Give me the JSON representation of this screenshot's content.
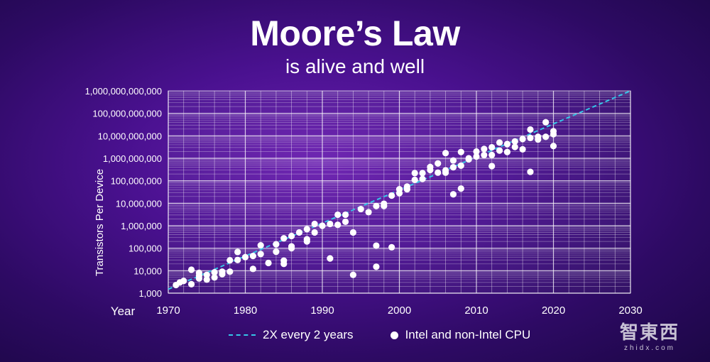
{
  "title": "Moore’s Law",
  "subtitle": "is alive and well",
  "legend": {
    "trend_label": "2X every 2 years",
    "points_label": "Intel and non-Intel CPU"
  },
  "watermark": {
    "main": "智東西",
    "sub": "zhidx.com"
  },
  "colors": {
    "trend_line": "#35c6e8",
    "points": "#ffffff",
    "grid": "#ffffff"
  },
  "chart_data": {
    "type": "scatter",
    "ylabel": "Transistors Per Device",
    "xlabel": "Year",
    "xlim": [
      1970,
      2030
    ],
    "ylim": [
      1000,
      1000000000000
    ],
    "y_scale": "log",
    "x_ticks": [
      1970,
      1980,
      1990,
      2000,
      2010,
      2020,
      2030
    ],
    "x_tick_labels": [
      "1970",
      "1980",
      "1990",
      "2000",
      "2010",
      "2020",
      "2030"
    ],
    "y_ticks": [
      1000,
      10000,
      100000,
      1000000,
      10000000,
      100000000,
      1000000000,
      10000000000,
      100000000000,
      1000000000000
    ],
    "y_tick_labels": [
      "1,000",
      "10,000",
      "100,000",
      "1,000,000",
      "10,000,000",
      "100,000,000",
      "1,000,000,000",
      "10,000,000,000",
      "100,000,000,000",
      "1,000,000,000,000"
    ],
    "grid": true,
    "trend": {
      "name": "2X every 2 years",
      "points": [
        [
          1970,
          1500
        ],
        [
          2030,
          1000000000000
        ]
      ]
    },
    "series": [
      {
        "name": "Intel and non-Intel CPU",
        "points": [
          [
            1971,
            2300
          ],
          [
            1971.5,
            3000
          ],
          [
            1972,
            3500
          ],
          [
            1973,
            2500
          ],
          [
            1973,
            11000
          ],
          [
            1974,
            4500
          ],
          [
            1974,
            6000
          ],
          [
            1974,
            8000
          ],
          [
            1975,
            4000
          ],
          [
            1975,
            6500
          ],
          [
            1976,
            5000
          ],
          [
            1976,
            8500
          ],
          [
            1977,
            7000
          ],
          [
            1977,
            9000
          ],
          [
            1978,
            9000
          ],
          [
            1978,
            29000
          ],
          [
            1979,
            30000
          ],
          [
            1979,
            68000
          ],
          [
            1980,
            40000
          ],
          [
            1981,
            12000
          ],
          [
            1981,
            45000
          ],
          [
            1982,
            55000
          ],
          [
            1982,
            134000
          ],
          [
            1983,
            22000
          ],
          [
            1984,
            70000
          ],
          [
            1984,
            150000
          ],
          [
            1985,
            20000
          ],
          [
            1985,
            28000
          ],
          [
            1985,
            275000
          ],
          [
            1986,
            100000
          ],
          [
            1986,
            120000
          ],
          [
            1986,
            350000
          ],
          [
            1987,
            500000
          ],
          [
            1988,
            200000
          ],
          [
            1988,
            250000
          ],
          [
            1988,
            700000
          ],
          [
            1989,
            500000
          ],
          [
            1989,
            1200000
          ],
          [
            1990,
            1000000
          ],
          [
            1991,
            1200000
          ],
          [
            1991,
            35000
          ],
          [
            1992,
            1100000
          ],
          [
            1992,
            3100000
          ],
          [
            1993,
            1500000
          ],
          [
            1993,
            3100000
          ],
          [
            1994,
            500000
          ],
          [
            1994,
            6500
          ],
          [
            1995,
            5500000
          ],
          [
            1996,
            4000000
          ],
          [
            1997,
            7500000
          ],
          [
            1997,
            130000
          ],
          [
            1997,
            15000
          ],
          [
            1998,
            7500000
          ],
          [
            1998,
            9500000
          ],
          [
            1999,
            110000
          ],
          [
            1999,
            22000000
          ],
          [
            2000,
            42000000
          ],
          [
            2000,
            28000000
          ],
          [
            2001,
            55000000
          ],
          [
            2001,
            42000000
          ],
          [
            2002,
            110000000
          ],
          [
            2002,
            220000000
          ],
          [
            2003,
            220000000
          ],
          [
            2003,
            120000000
          ],
          [
            2004,
            300000000
          ],
          [
            2004,
            410000000
          ],
          [
            2005,
            230000000
          ],
          [
            2005,
            590000000
          ],
          [
            2006,
            230000000
          ],
          [
            2006,
            290000000
          ],
          [
            2006,
            1700000000
          ],
          [
            2007,
            400000000
          ],
          [
            2007,
            800000000
          ],
          [
            2007,
            25000000
          ],
          [
            2008,
            1900000000
          ],
          [
            2008,
            470000000
          ],
          [
            2008,
            45000000
          ],
          [
            2009,
            900000000
          ],
          [
            2009,
            1000000000
          ],
          [
            2010,
            1200000000
          ],
          [
            2010,
            2000000000
          ],
          [
            2011,
            1400000000
          ],
          [
            2011,
            2600000000
          ],
          [
            2012,
            3100000000
          ],
          [
            2012,
            1400000000
          ],
          [
            2012,
            450000000
          ],
          [
            2013,
            2200000000
          ],
          [
            2013,
            5000000000
          ],
          [
            2014,
            4300000000
          ],
          [
            2014,
            1900000000
          ],
          [
            2015,
            5600000000
          ],
          [
            2015,
            3200000000
          ],
          [
            2016,
            7200000000
          ],
          [
            2016,
            2500000000
          ],
          [
            2017,
            19000000000
          ],
          [
            2017,
            8000000000
          ],
          [
            2017,
            250000000
          ],
          [
            2018,
            6900000000
          ],
          [
            2018,
            9000000000
          ],
          [
            2019,
            40000000000
          ],
          [
            2019,
            9000000000
          ],
          [
            2020,
            16000000000
          ],
          [
            2020,
            3500000000
          ],
          [
            2020,
            11800000000
          ]
        ]
      }
    ]
  }
}
